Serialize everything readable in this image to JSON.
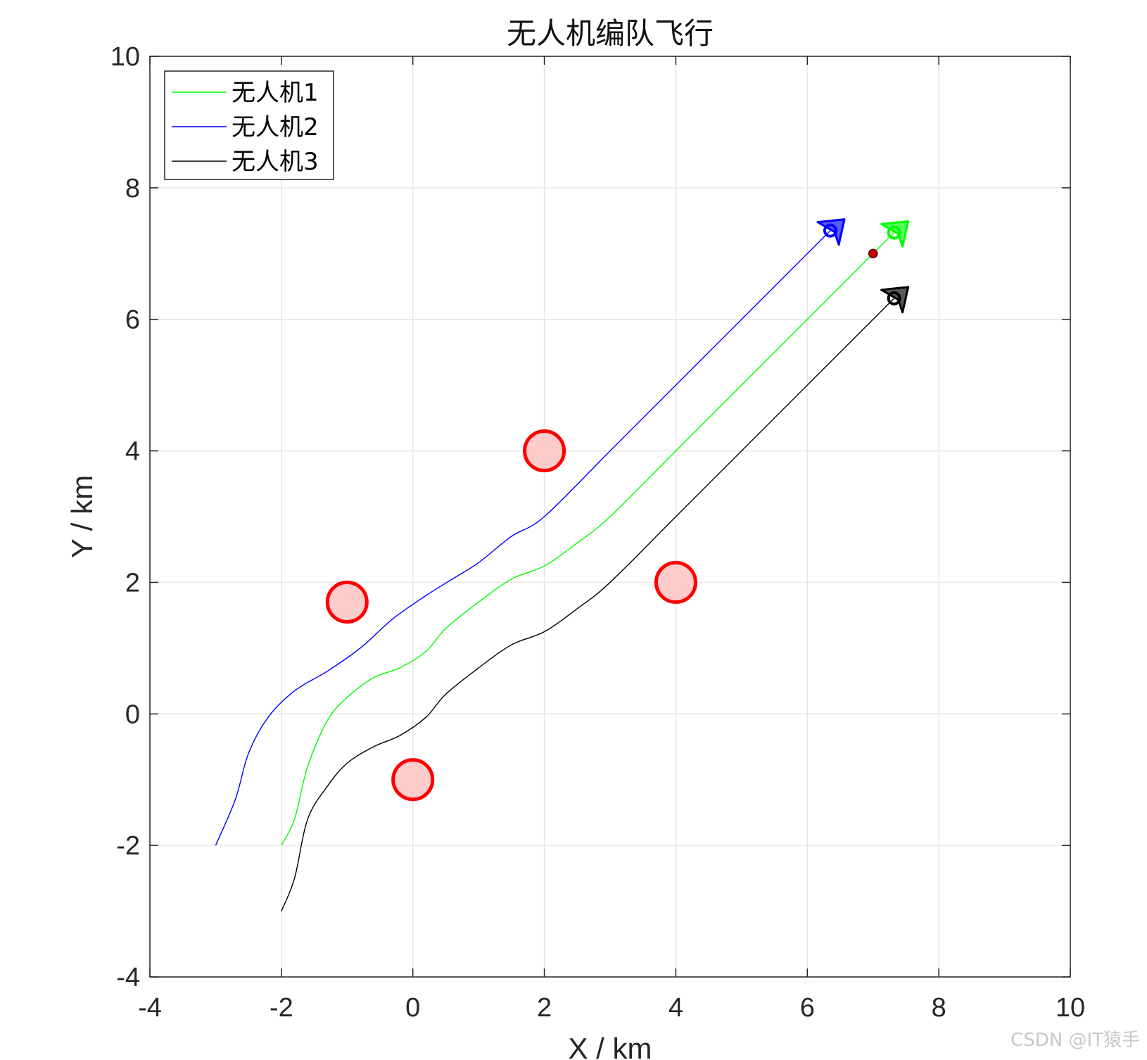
{
  "chart_data": {
    "type": "line",
    "title": "无人机编队飞行",
    "xlabel": "X / km",
    "ylabel": "Y / km",
    "xlim": [
      -4,
      10
    ],
    "ylim": [
      -4,
      10
    ],
    "xticks": [
      -4,
      -2,
      0,
      2,
      4,
      6,
      8,
      10
    ],
    "yticks": [
      -4,
      -2,
      0,
      2,
      4,
      6,
      8,
      10
    ],
    "grid": true,
    "legend_position": "top-left",
    "series": [
      {
        "name": "无人机1",
        "color": "#00ff00",
        "points": [
          [
            -2.0,
            -2.0
          ],
          [
            -1.8,
            -1.6
          ],
          [
            -1.6,
            -0.8
          ],
          [
            -1.3,
            -0.1
          ],
          [
            -1.0,
            0.25
          ],
          [
            -0.6,
            0.55
          ],
          [
            -0.2,
            0.7
          ],
          [
            0.2,
            0.95
          ],
          [
            0.5,
            1.3
          ],
          [
            1.0,
            1.7
          ],
          [
            1.5,
            2.05
          ],
          [
            2.0,
            2.25
          ],
          [
            2.5,
            2.6
          ],
          [
            3.0,
            3.0
          ],
          [
            4.0,
            4.0
          ],
          [
            5.0,
            5.0
          ],
          [
            6.0,
            6.0
          ],
          [
            7.0,
            7.0
          ],
          [
            7.32,
            7.32
          ]
        ]
      },
      {
        "name": "无人机2",
        "color": "#0000ff",
        "points": [
          [
            -3.0,
            -2.0
          ],
          [
            -2.7,
            -1.3
          ],
          [
            -2.5,
            -0.6
          ],
          [
            -2.2,
            -0.05
          ],
          [
            -1.8,
            0.35
          ],
          [
            -1.3,
            0.65
          ],
          [
            -0.8,
            1.0
          ],
          [
            -0.3,
            1.45
          ],
          [
            0.2,
            1.8
          ],
          [
            0.6,
            2.05
          ],
          [
            1.0,
            2.3
          ],
          [
            1.5,
            2.7
          ],
          [
            2.0,
            3.0
          ],
          [
            3.0,
            4.0
          ],
          [
            4.0,
            5.0
          ],
          [
            5.0,
            6.0
          ],
          [
            6.0,
            7.0
          ],
          [
            6.35,
            7.35
          ]
        ]
      },
      {
        "name": "无人机3",
        "color": "#000000",
        "points": [
          [
            -2.0,
            -3.0
          ],
          [
            -1.8,
            -2.5
          ],
          [
            -1.6,
            -1.6
          ],
          [
            -1.3,
            -1.1
          ],
          [
            -1.0,
            -0.75
          ],
          [
            -0.6,
            -0.5
          ],
          [
            -0.2,
            -0.33
          ],
          [
            0.2,
            -0.05
          ],
          [
            0.5,
            0.3
          ],
          [
            1.0,
            0.7
          ],
          [
            1.5,
            1.05
          ],
          [
            2.0,
            1.25
          ],
          [
            2.5,
            1.6
          ],
          [
            3.0,
            2.0
          ],
          [
            4.0,
            3.0
          ],
          [
            5.0,
            4.0
          ],
          [
            6.0,
            5.0
          ],
          [
            7.0,
            6.0
          ],
          [
            7.32,
            6.32
          ]
        ]
      }
    ],
    "obstacles": [
      {
        "x": 2,
        "y": 4,
        "r": 0.3
      },
      {
        "x": -1,
        "y": 1.7,
        "r": 0.3
      },
      {
        "x": 4,
        "y": 2,
        "r": 0.3
      },
      {
        "x": 0,
        "y": -1,
        "r": 0.3
      }
    ],
    "uav_markers": [
      {
        "x": 7.32,
        "y": 7.32,
        "color": "#00ff00"
      },
      {
        "x": 6.35,
        "y": 7.35,
        "color": "#0000ff"
      },
      {
        "x": 7.32,
        "y": 6.32,
        "color": "#000000"
      }
    ],
    "target_point": {
      "x": 7.0,
      "y": 7.0
    },
    "colors": {
      "obstacle_fill": "#ffcccc",
      "obstacle_stroke": "#ff0000",
      "target_fill": "#cc0000",
      "grid": "#e6e6e6",
      "axis": "#262626"
    }
  },
  "watermark": "CSDN @IT猿手"
}
